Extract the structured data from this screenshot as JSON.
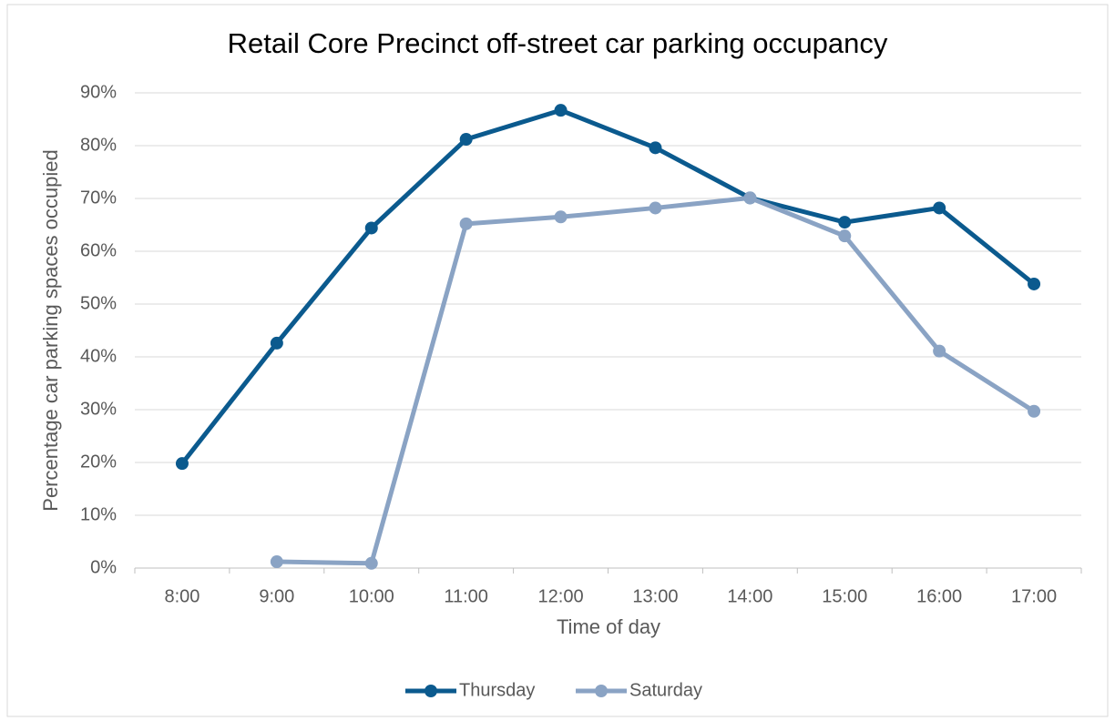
{
  "chart_data": {
    "type": "line",
    "title": "Retail Core Precinct off-street car parking occupancy",
    "x_label": "Time of day",
    "y_label": "Percentage car parking spaces occupied",
    "categories": [
      "8:00",
      "9:00",
      "10:00",
      "11:00",
      "12:00",
      "13:00",
      "14:00",
      "15:00",
      "16:00",
      "17:00"
    ],
    "series": [
      {
        "name": "Thursday",
        "color": "#0b5a8e",
        "values": [
          19.8,
          42.6,
          64.4,
          81.2,
          86.7,
          79.6,
          70.1,
          65.5,
          68.2,
          53.8
        ]
      },
      {
        "name": "Saturday",
        "color": "#8aa3c4",
        "values": [
          null,
          1.2,
          0.9,
          65.2,
          66.5,
          68.2,
          70.1,
          62.9,
          41.1,
          29.7
        ]
      }
    ],
    "ylim": [
      0,
      90
    ],
    "yticks": [
      {
        "value": 0,
        "label": "0%"
      },
      {
        "value": 10,
        "label": "10%"
      },
      {
        "value": 20,
        "label": "20%"
      },
      {
        "value": 30,
        "label": "30%"
      },
      {
        "value": 40,
        "label": "40%"
      },
      {
        "value": 50,
        "label": "50%"
      },
      {
        "value": 60,
        "label": "60%"
      },
      {
        "value": 70,
        "label": "70%"
      },
      {
        "value": 80,
        "label": "80%"
      },
      {
        "value": 90,
        "label": "90%"
      }
    ],
    "grid": true,
    "legend": "bottom"
  }
}
